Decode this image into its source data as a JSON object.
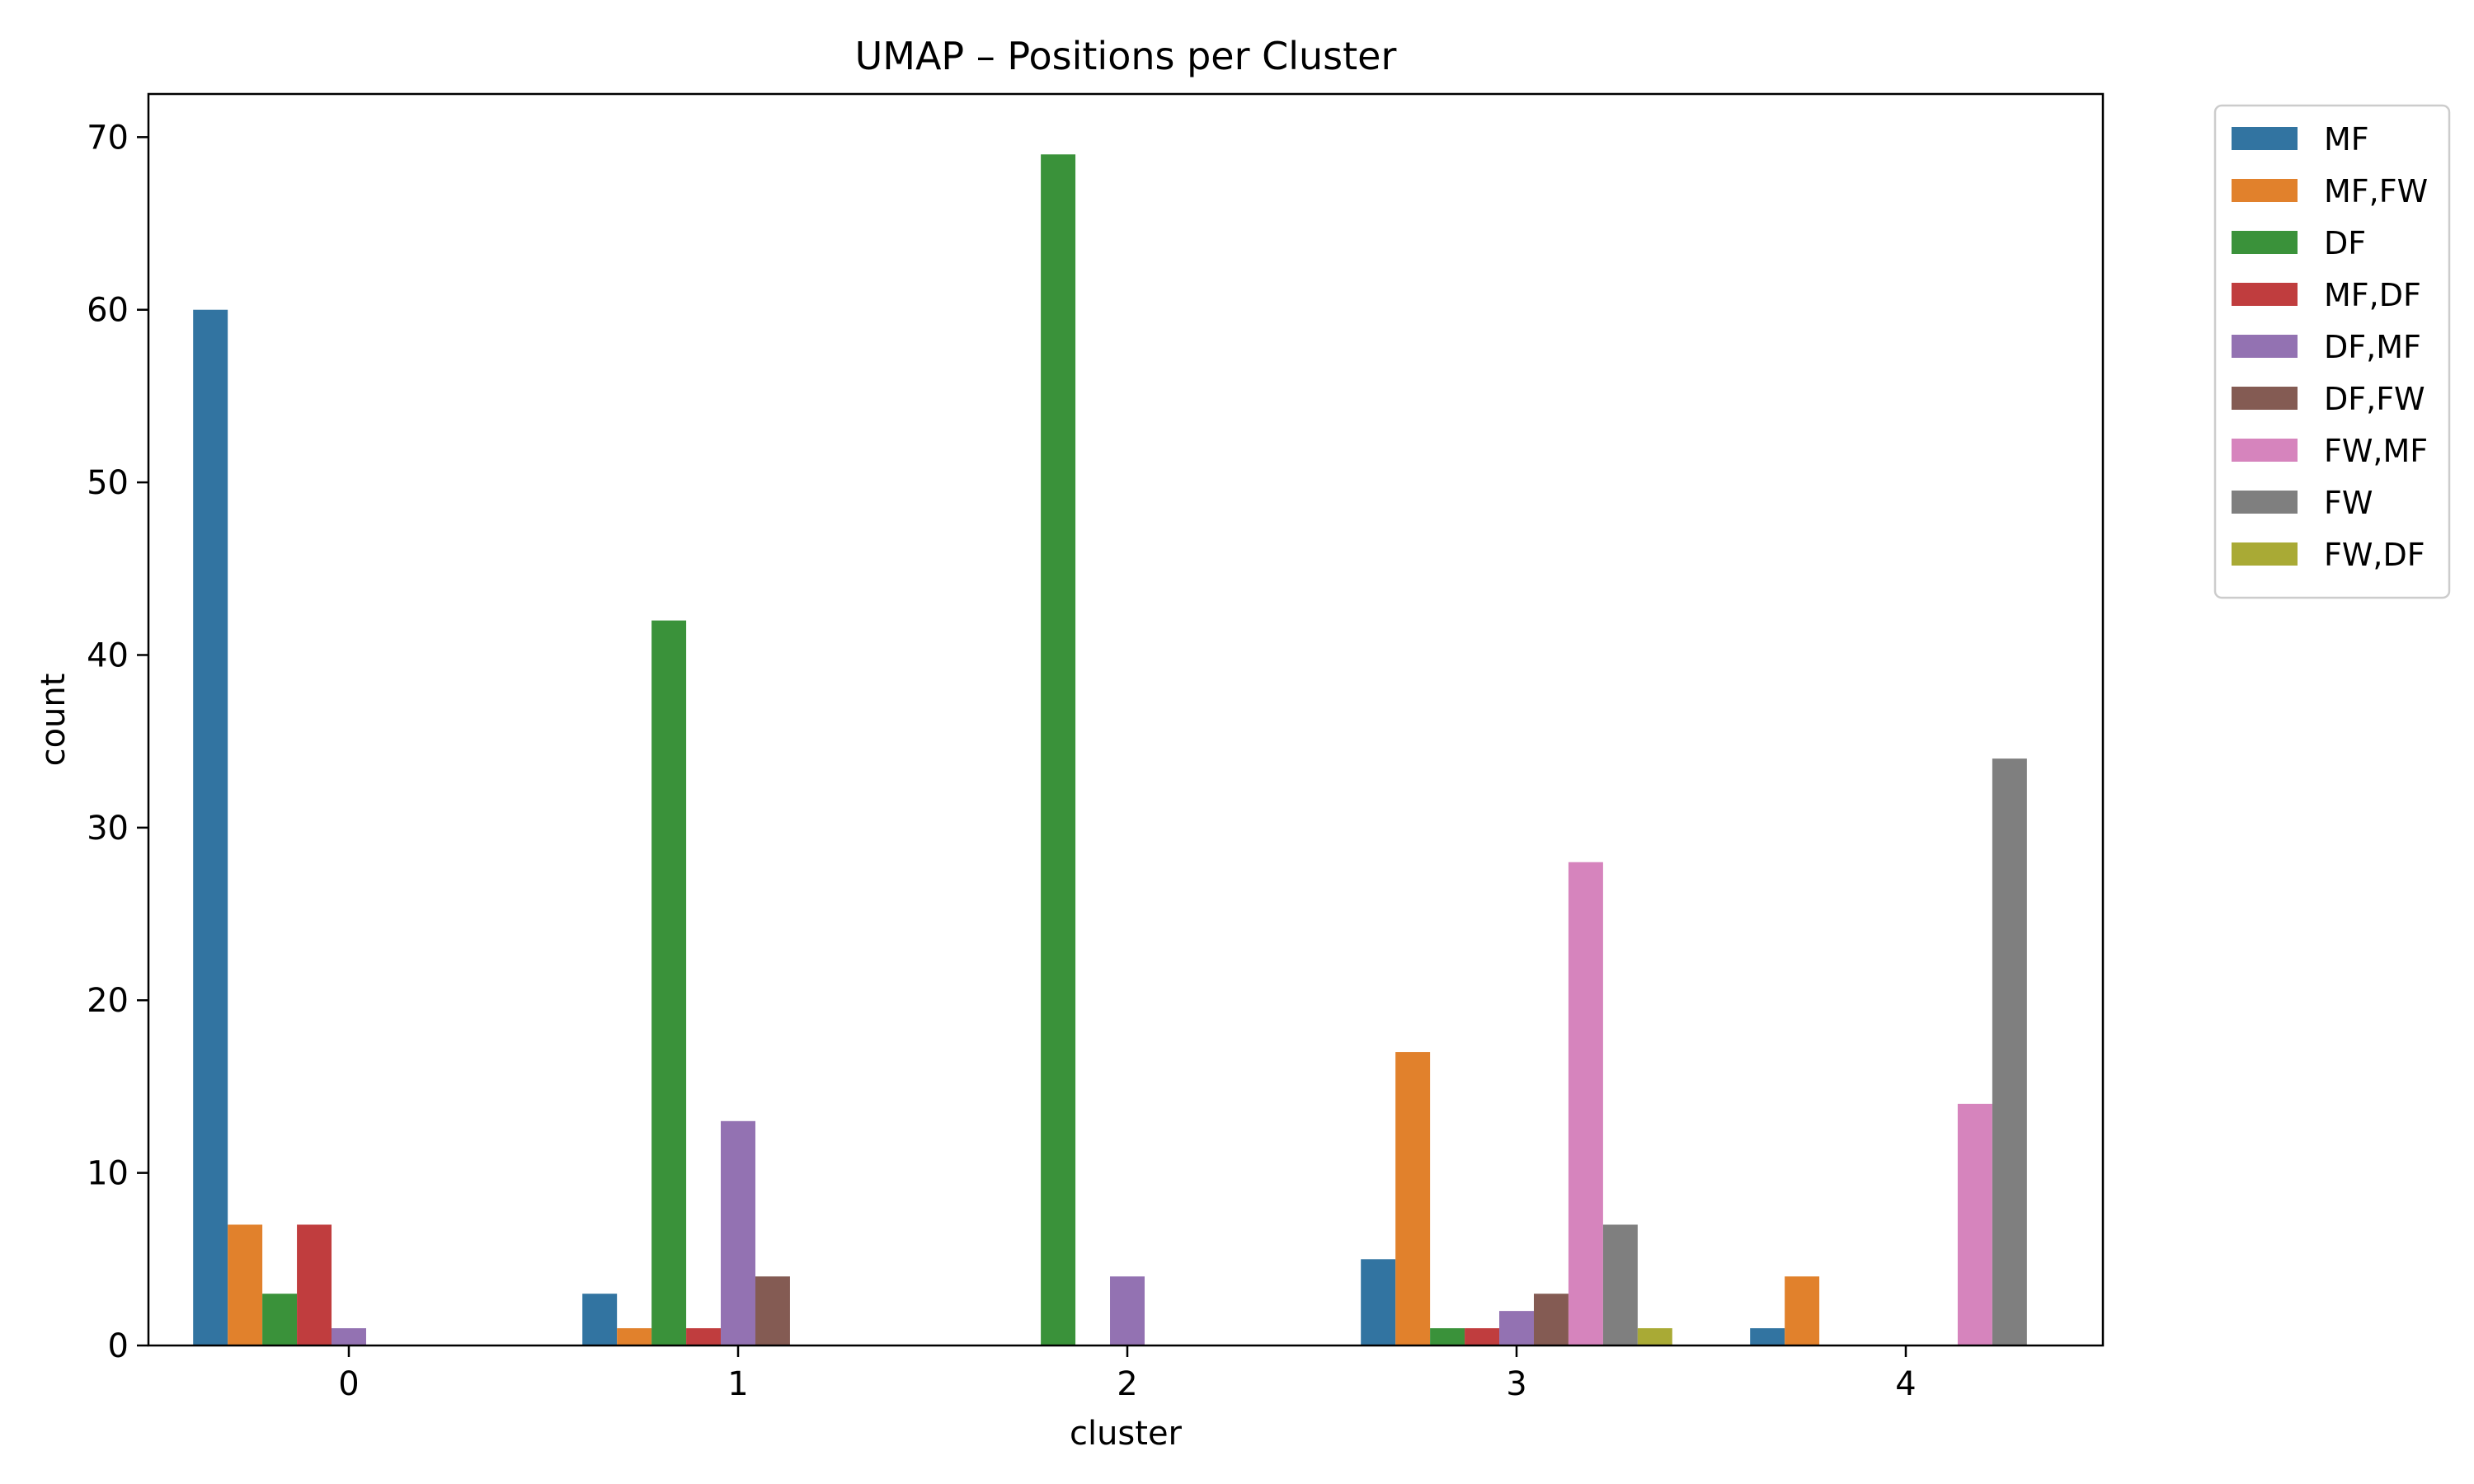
{
  "chart_data": {
    "type": "bar",
    "title": "UMAP – Positions per Cluster",
    "xlabel": "cluster",
    "ylabel": "count",
    "categories": [
      "0",
      "1",
      "2",
      "3",
      "4"
    ],
    "ylim": [
      0,
      72.5
    ],
    "yticks": [
      0,
      10,
      20,
      30,
      40,
      50,
      60,
      70
    ],
    "grid": false,
    "legend_position": "outside-top-right",
    "series": [
      {
        "name": "MF",
        "color": "#3274a1",
        "values": [
          60,
          3,
          0,
          5,
          1
        ]
      },
      {
        "name": "MF,FW",
        "color": "#e1812c",
        "values": [
          7,
          1,
          0,
          17,
          4
        ]
      },
      {
        "name": "DF",
        "color": "#3a923a",
        "values": [
          3,
          42,
          69,
          1,
          0
        ]
      },
      {
        "name": "MF,DF",
        "color": "#c03d3e",
        "values": [
          7,
          1,
          0,
          1,
          0
        ]
      },
      {
        "name": "DF,MF",
        "color": "#9372b2",
        "values": [
          1,
          13,
          4,
          2,
          0
        ]
      },
      {
        "name": "DF,FW",
        "color": "#845b53",
        "values": [
          0,
          4,
          0,
          3,
          0
        ]
      },
      {
        "name": "FW,MF",
        "color": "#d684bd",
        "values": [
          0,
          0,
          0,
          28,
          14
        ]
      },
      {
        "name": "FW",
        "color": "#7f7f7f",
        "values": [
          0,
          0,
          0,
          7,
          34
        ]
      },
      {
        "name": "FW,DF",
        "color": "#a9aa35",
        "values": [
          0,
          0,
          0,
          1,
          0
        ]
      }
    ]
  }
}
